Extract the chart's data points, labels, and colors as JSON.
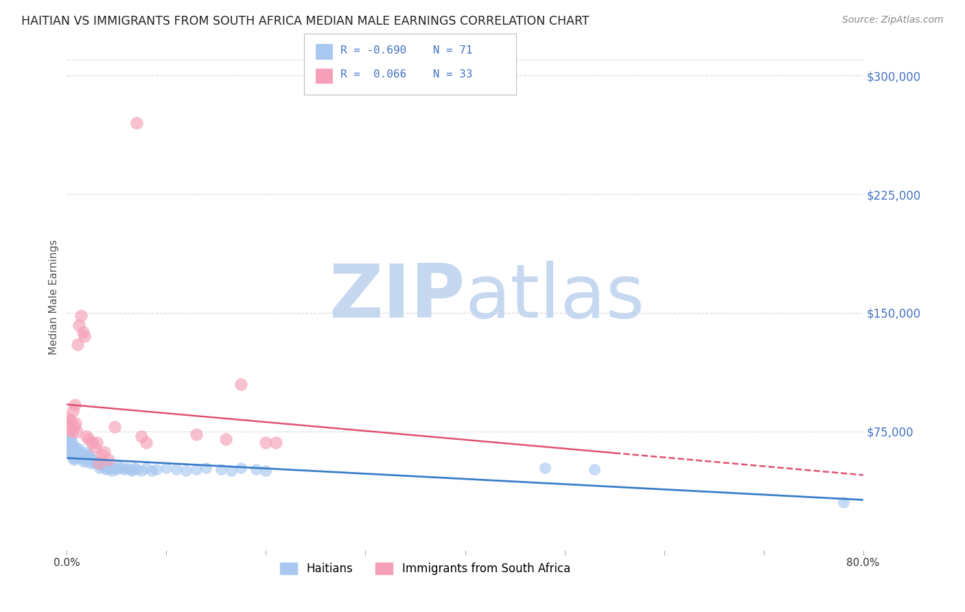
{
  "title": "HAITIAN VS IMMIGRANTS FROM SOUTH AFRICA MEDIAN MALE EARNINGS CORRELATION CHART",
  "source": "Source: ZipAtlas.com",
  "ylabel": "Median Male Earnings",
  "xlim": [
    0.0,
    0.8
  ],
  "ylim": [
    0,
    320000
  ],
  "xticks": [
    0.0,
    0.1,
    0.2,
    0.3,
    0.4,
    0.5,
    0.6,
    0.7,
    0.8
  ],
  "yticks_right": [
    75000,
    150000,
    225000,
    300000
  ],
  "ytick_labels_right": [
    "$75,000",
    "$150,000",
    "$225,000",
    "$300,000"
  ],
  "background_color": "#ffffff",
  "plot_bg_color": "#ffffff",
  "grid_color": "#d8d8d8",
  "series1_label": "Haitians",
  "series1_color": "#a8c8f0",
  "series1_line_color": "#3a7dc9",
  "series1_R": -0.69,
  "series1_N": 71,
  "series2_label": "Immigrants from South Africa",
  "series2_color": "#f5a0b8",
  "series2_line_color": "#e05070",
  "series2_R": 0.066,
  "series2_N": 33,
  "haitians_x": [
    0.001,
    0.002,
    0.003,
    0.003,
    0.004,
    0.004,
    0.005,
    0.005,
    0.006,
    0.006,
    0.007,
    0.007,
    0.008,
    0.008,
    0.009,
    0.009,
    0.01,
    0.011,
    0.012,
    0.013,
    0.014,
    0.015,
    0.016,
    0.017,
    0.018,
    0.019,
    0.02,
    0.021,
    0.022,
    0.023,
    0.024,
    0.025,
    0.027,
    0.028,
    0.03,
    0.032,
    0.033,
    0.035,
    0.037,
    0.038,
    0.04,
    0.042,
    0.043,
    0.045,
    0.047,
    0.05,
    0.052,
    0.055,
    0.058,
    0.06,
    0.063,
    0.065,
    0.068,
    0.07,
    0.075,
    0.08,
    0.085,
    0.09,
    0.1,
    0.11,
    0.12,
    0.13,
    0.14,
    0.155,
    0.165,
    0.175,
    0.19,
    0.2,
    0.48,
    0.53,
    0.78
  ],
  "haitians_y": [
    65000,
    68000,
    72000,
    64000,
    70000,
    62000,
    68000,
    60000,
    65000,
    58000,
    63000,
    57000,
    62000,
    60000,
    65000,
    58000,
    62000,
    60000,
    64000,
    62000,
    60000,
    58000,
    60000,
    56000,
    57000,
    60000,
    62000,
    58000,
    60000,
    58000,
    55000,
    57000,
    55000,
    57000,
    55000,
    54000,
    52000,
    54000,
    53000,
    52000,
    51000,
    53000,
    52000,
    50000,
    52000,
    51000,
    53000,
    52000,
    51000,
    52000,
    51000,
    50000,
    52000,
    51000,
    50000,
    52000,
    50000,
    51000,
    52000,
    51000,
    50000,
    51000,
    52000,
    51000,
    50000,
    52000,
    51000,
    50000,
    52000,
    51000,
    30000
  ],
  "south_africa_x": [
    0.001,
    0.002,
    0.003,
    0.004,
    0.005,
    0.006,
    0.007,
    0.008,
    0.009,
    0.01,
    0.011,
    0.012,
    0.014,
    0.016,
    0.018,
    0.02,
    0.022,
    0.025,
    0.028,
    0.03,
    0.032,
    0.035,
    0.038,
    0.042,
    0.048,
    0.07,
    0.075,
    0.08,
    0.13,
    0.16,
    0.175,
    0.2,
    0.21
  ],
  "south_africa_y": [
    80000,
    83000,
    76000,
    82000,
    75000,
    88000,
    78000,
    92000,
    80000,
    75000,
    130000,
    142000,
    148000,
    138000,
    135000,
    72000,
    70000,
    68000,
    65000,
    68000,
    55000,
    60000,
    62000,
    57000,
    78000,
    270000,
    72000,
    68000,
    73000,
    70000,
    105000,
    68000,
    68000
  ]
}
